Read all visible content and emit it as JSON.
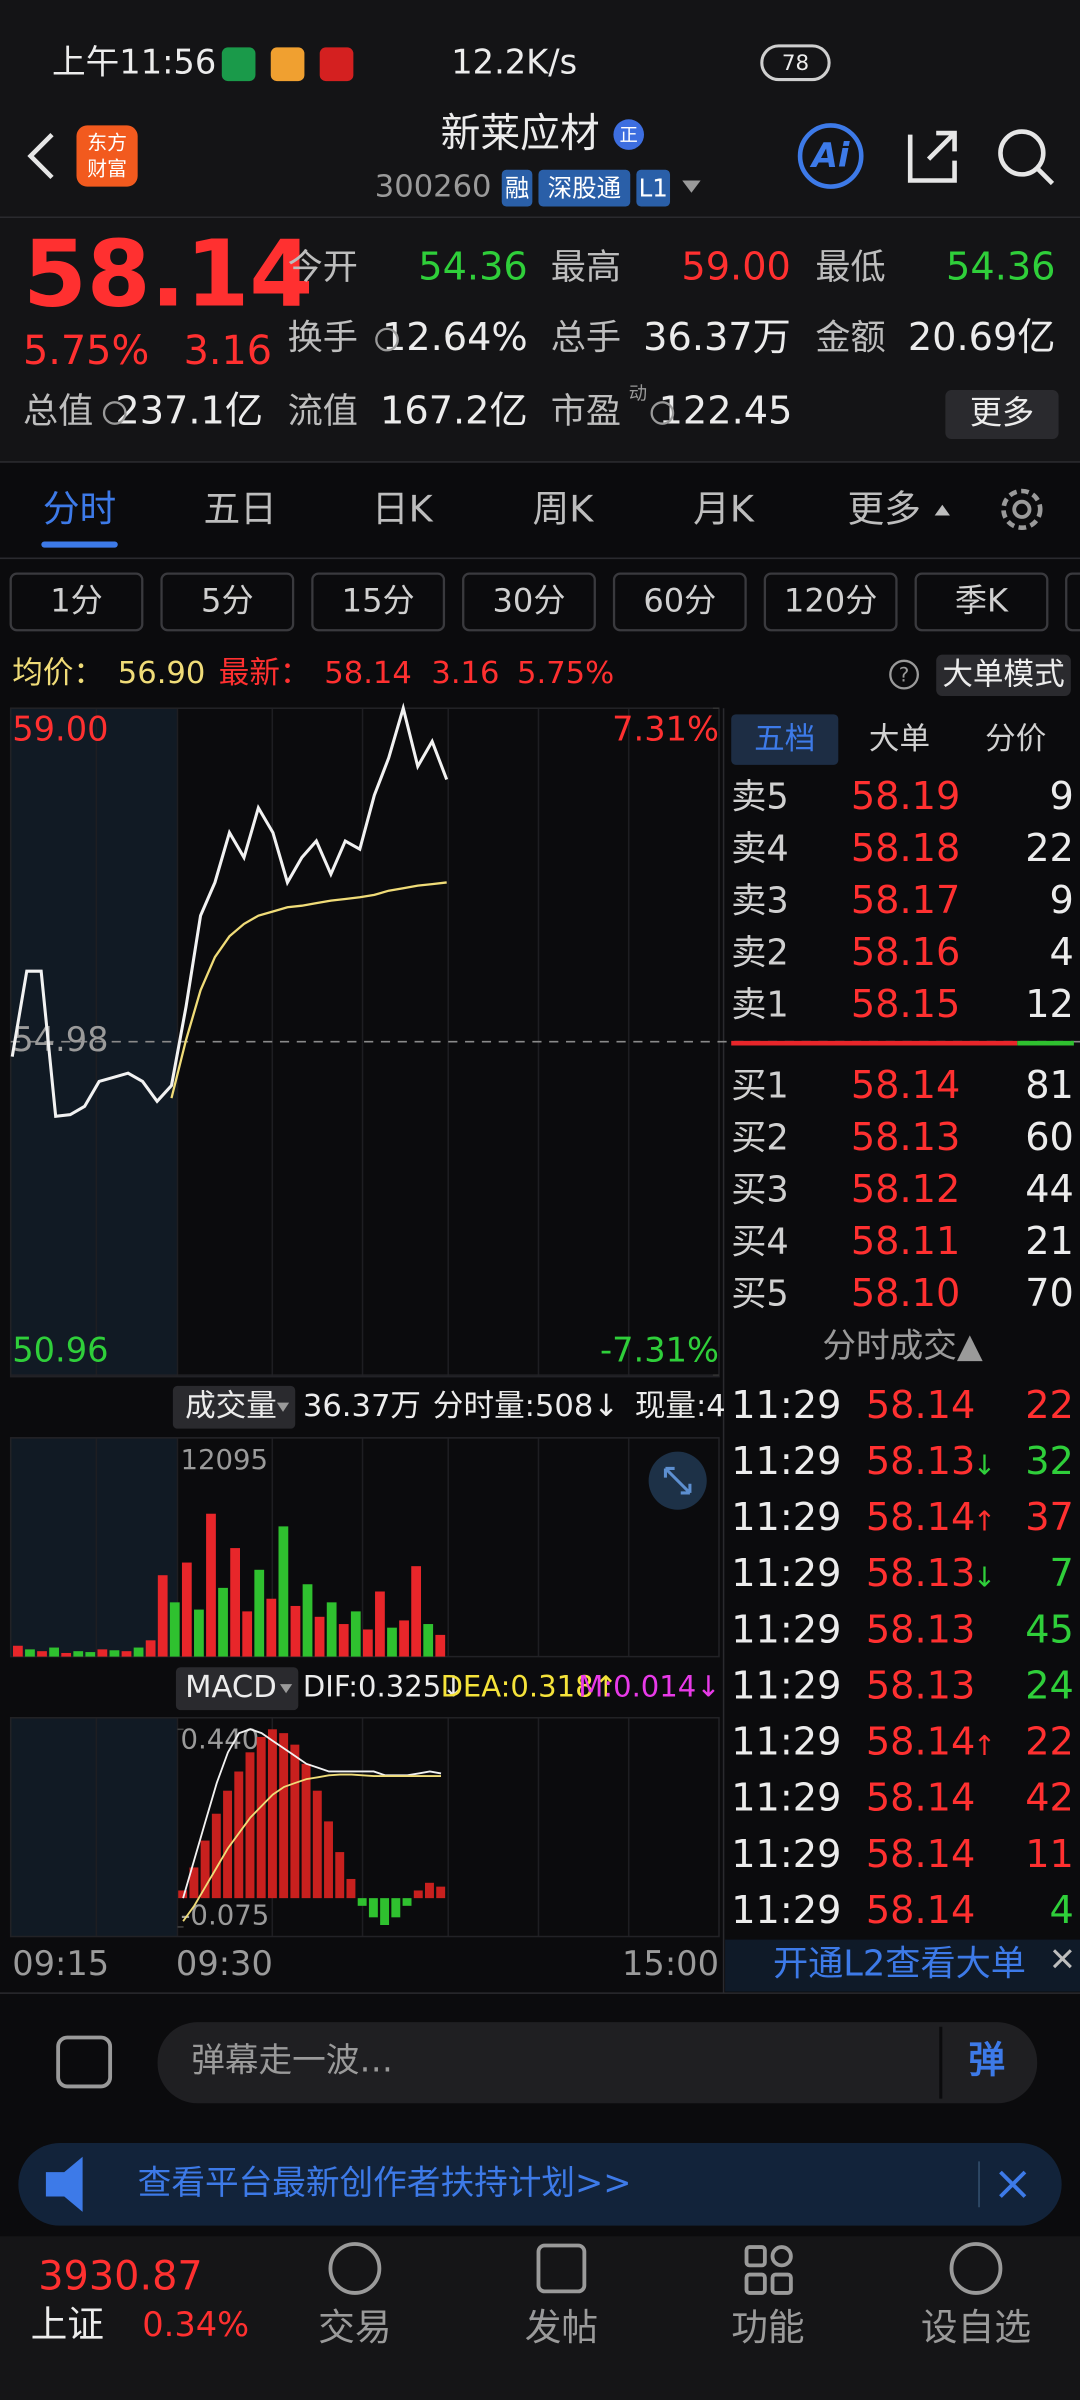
{
  "status": {
    "time": "上午11:56",
    "speed": "12.2K/s",
    "battery": "78"
  },
  "header": {
    "logo": [
      "东方",
      "财富"
    ],
    "name": "新莱应材",
    "badge": "正",
    "code": "300260",
    "tags": [
      "融",
      "深股通",
      "L1"
    ],
    "ai": "Ai"
  },
  "quote": {
    "price": "58.14",
    "pct": "5.75%",
    "change": "3.16",
    "more": "更多",
    "fields": [
      {
        "label": "今开",
        "value": "54.36",
        "color": "#2fcf3a"
      },
      {
        "label": "最高",
        "value": "59.00",
        "color": "#ff3030"
      },
      {
        "label": "最低",
        "value": "54.36",
        "color": "#2fcf3a"
      },
      {
        "label": "换手",
        "value": "12.64%",
        "color": "#ececec"
      },
      {
        "label": "总手",
        "value": "36.37万",
        "color": "#ececec"
      },
      {
        "label": "金额",
        "value": "20.69亿",
        "color": "#ececec"
      },
      {
        "label": "总值",
        "value": "237.1亿",
        "color": "#ececec"
      },
      {
        "label": "流值",
        "value": "167.2亿",
        "color": "#ececec"
      },
      {
        "label": "市盈",
        "sup": "动",
        "value": "122.45",
        "color": "#ececec"
      }
    ]
  },
  "tabs": [
    "分时",
    "五日",
    "日K",
    "周K",
    "月K",
    "更多"
  ],
  "periods": [
    "1分",
    "5分",
    "15分",
    "30分",
    "60分",
    "120分",
    "季K"
  ],
  "info": {
    "avg_label": "均价：",
    "avg": "56.90",
    "last_label": "最新：",
    "last": "58.14",
    "change": "3.16",
    "pct": "5.75%",
    "help": "?",
    "mode": "大单模式"
  },
  "chart_data": [
    {
      "type": "line",
      "ylim": [
        50.96,
        59.0
      ],
      "yticks": [
        {
          "value": 59.0,
          "label": "59.00"
        },
        {
          "value": 54.98,
          "label": "54.98"
        },
        {
          "value": 50.96,
          "label": "50.96"
        }
      ],
      "y2lim": [
        -7.31,
        7.31
      ],
      "y2ticks": [
        {
          "value": 7.31,
          "label": "7.31%"
        },
        {
          "value": -7.31,
          "label": "-7.31%"
        }
      ],
      "x_labels": [
        "09:15",
        "09:30",
        "15:00"
      ],
      "series": [
        {
          "color": "#f2f2f2",
          "values": [
            54.8,
            55.83,
            55.83,
            54.08,
            54.1,
            54.2,
            54.5,
            54.55,
            54.6,
            54.5,
            54.26,
            54.45,
            55.4,
            56.5,
            56.9,
            57.5,
            57.2,
            57.8,
            57.5,
            56.9,
            57.2,
            57.4,
            57.0,
            57.4,
            57.3,
            57.95,
            58.4,
            59.0,
            58.3,
            58.6,
            58.14
          ]
        },
        {
          "color": "#f0dc78",
          "values": [
            null,
            null,
            null,
            null,
            null,
            null,
            null,
            null,
            null,
            null,
            null,
            54.3,
            55.0,
            55.6,
            56.0,
            56.25,
            56.4,
            56.5,
            56.55,
            56.6,
            56.62,
            56.65,
            56.68,
            56.7,
            56.72,
            56.75,
            56.8,
            56.83,
            56.86,
            56.88,
            56.9
          ]
        }
      ]
    },
    {
      "type": "bar",
      "title": "成交量",
      "total": "36.37万",
      "period_vol": "分时量:508↓",
      "now_vol": "现量:4",
      "ylim": [
        0,
        12095
      ],
      "yticks": [
        12095
      ],
      "values": [
        600,
        400,
        300,
        500,
        200,
        300,
        250,
        400,
        350,
        300,
        500,
        900,
        4500,
        3000,
        5200,
        2600,
        7900,
        3800,
        6000,
        2500,
        4800,
        3200,
        7200,
        2800,
        4000,
        2200,
        3000,
        1800,
        2500,
        1500,
        3600,
        1600,
        2000,
        5000,
        1800,
        1200
      ],
      "colors": [
        "#e8262a",
        "#2fc12f",
        "#e8262a",
        "#2fc12f",
        "#e8262a",
        "#2fc12f",
        "#2fc12f",
        "#e8262a",
        "#2fc12f",
        "#e8262a",
        "#2fc12f",
        "#e8262a",
        "#e8262a",
        "#2fc12f",
        "#e8262a",
        "#2fc12f",
        "#e8262a",
        "#2fc12f",
        "#e8262a",
        "#e8262a",
        "#2fc12f",
        "#e8262a",
        "#2fc12f",
        "#e8262a",
        "#2fc12f",
        "#e8262a",
        "#2fc12f",
        "#e8262a",
        "#2fc12f",
        "#e8262a",
        "#e8262a",
        "#2fc12f",
        "#e8262a",
        "#e8262a",
        "#2fc12f",
        "#e8262a"
      ]
    },
    {
      "type": "macd",
      "title": "MACD",
      "dif": "DIF:0.325↓",
      "dea": "DEA:0.318↑",
      "m": "M:0.014↓",
      "ylim": [
        -0.1,
        0.47
      ],
      "yticks": [
        {
          "value": 0.44,
          "label": "0.440"
        },
        {
          "value": -0.075,
          "label": "-0.075"
        }
      ],
      "values": [
        0.02,
        0.08,
        0.15,
        0.22,
        0.28,
        0.33,
        0.38,
        0.42,
        0.44,
        0.43,
        0.4,
        0.35,
        0.28,
        0.2,
        0.12,
        0.05,
        -0.02,
        -0.05,
        -0.07,
        -0.05,
        -0.02,
        0.02,
        0.04,
        0.03
      ],
      "dif_values": [
        0.0,
        0.1,
        0.2,
        0.3,
        0.38,
        0.43,
        0.44,
        0.43,
        0.41,
        0.39,
        0.37,
        0.35,
        0.34,
        0.33,
        0.33,
        0.33,
        0.33,
        0.33,
        0.32,
        0.32,
        0.32,
        0.325,
        0.33,
        0.325
      ],
      "dea_values": [
        -0.06,
        -0.02,
        0.03,
        0.08,
        0.13,
        0.17,
        0.21,
        0.24,
        0.27,
        0.29,
        0.3,
        0.31,
        0.315,
        0.32,
        0.322,
        0.322,
        0.32,
        0.318,
        0.318,
        0.318,
        0.318,
        0.318,
        0.318,
        0.318
      ],
      "up_color": "#c8201e",
      "down_color": "#2fc12f",
      "dif_color": "#f2f2f2",
      "dea_color": "#f0dc78"
    }
  ],
  "book": {
    "tabs": [
      "五档",
      "大单",
      "分价"
    ],
    "sells": [
      [
        "卖5",
        "58.19",
        "9"
      ],
      [
        "卖4",
        "58.18",
        "22"
      ],
      [
        "卖3",
        "58.17",
        "9"
      ],
      [
        "卖2",
        "58.16",
        "4"
      ],
      [
        "卖1",
        "58.15",
        "12"
      ]
    ],
    "buys": [
      [
        "买1",
        "58.14",
        "81"
      ],
      [
        "买2",
        "58.13",
        "60"
      ],
      [
        "买3",
        "58.12",
        "44"
      ],
      [
        "买4",
        "58.11",
        "21"
      ],
      [
        "买5",
        "58.10",
        "70"
      ]
    ],
    "trades_title": "分时成交▲",
    "trades": [
      {
        "time": "11:29",
        "price": "58.14",
        "vol": "22",
        "vol_color": "#ff3030"
      },
      {
        "time": "11:29",
        "price": "58.13",
        "arrow": "↓",
        "arrow_color": "#2fcf3a",
        "vol": "32",
        "vol_color": "#2fcf3a"
      },
      {
        "time": "11:29",
        "price": "58.14",
        "arrow": "↑",
        "arrow_color": "#ff3030",
        "vol": "37",
        "vol_color": "#ff3030"
      },
      {
        "time": "11:29",
        "price": "58.13",
        "arrow": "↓",
        "arrow_color": "#2fcf3a",
        "vol": "7",
        "vol_color": "#2fcf3a"
      },
      {
        "time": "11:29",
        "price": "58.13",
        "vol": "45",
        "vol_color": "#2fcf3a"
      },
      {
        "time": "11:29",
        "price": "58.13",
        "vol": "24",
        "vol_color": "#2fcf3a"
      },
      {
        "time": "11:29",
        "price": "58.14",
        "arrow": "↑",
        "arrow_color": "#ff3030",
        "vol": "22",
        "vol_color": "#ff3030"
      },
      {
        "time": "11:29",
        "price": "58.14",
        "vol": "42",
        "vol_color": "#ff3030"
      },
      {
        "time": "11:29",
        "price": "58.14",
        "vol": "11",
        "vol_color": "#ff3030"
      },
      {
        "time": "11:29",
        "price": "58.14",
        "vol": "4",
        "vol_color": "#2fcf3a"
      }
    ],
    "l2": "开通L2查看大单"
  },
  "comment": {
    "placeholder": "弹幕走一波…",
    "button": "弹"
  },
  "banner": "查看平台最新创作者扶持计划>>",
  "nav": {
    "index_value": "3930.87",
    "index_name": "上证",
    "index_pct": "0.34%",
    "items": [
      "交易",
      "发帖",
      "功能",
      "设自选"
    ]
  }
}
